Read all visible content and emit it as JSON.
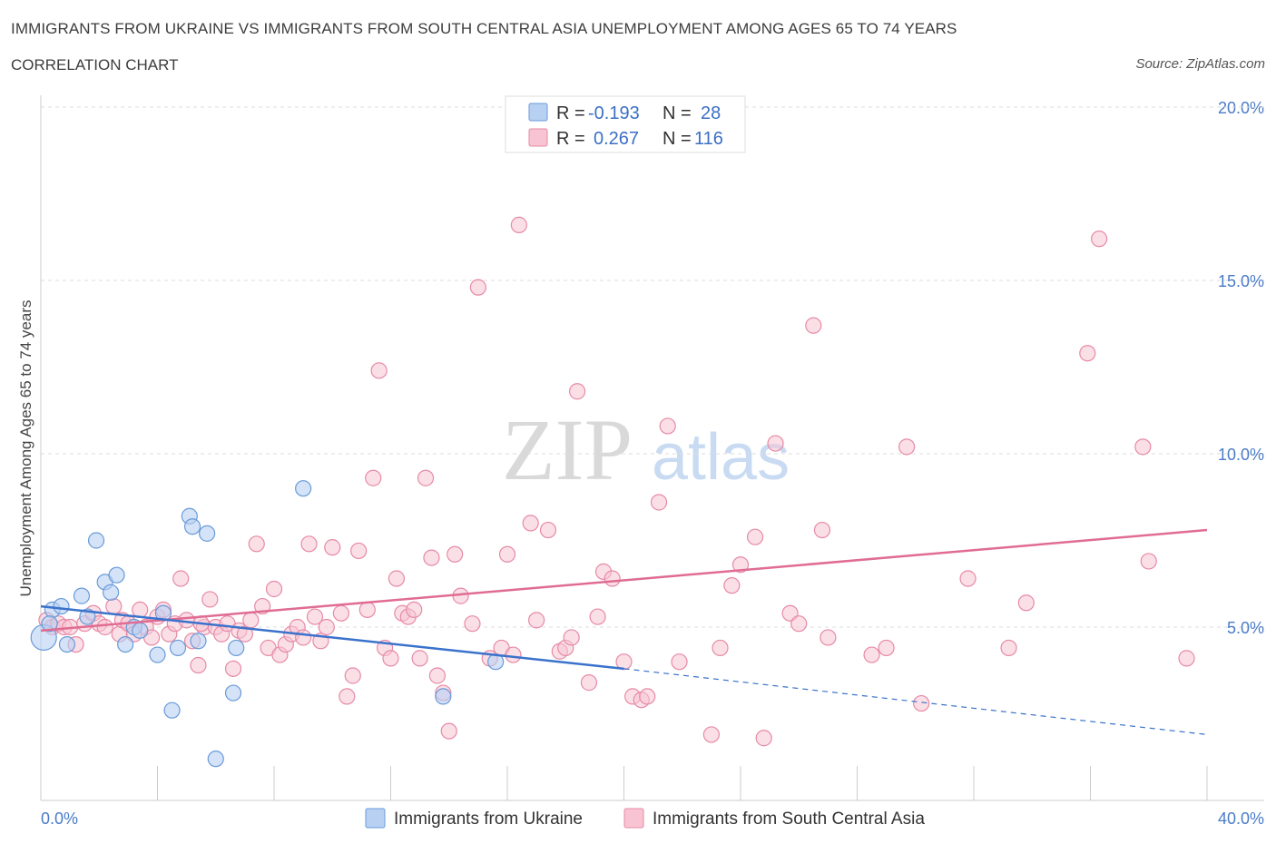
{
  "header": {
    "title": "IMMIGRANTS FROM UKRAINE VS IMMIGRANTS FROM SOUTH CENTRAL ASIA UNEMPLOYMENT AMONG AGES 65 TO 74 YEARS",
    "subtitle": "CORRELATION CHART",
    "source": "Source: ZipAtlas.com"
  },
  "watermark": {
    "zip": "ZIP",
    "atlas": "atlas"
  },
  "colors": {
    "ukraine_fill": "#b8d1f3",
    "ukraine_stroke": "#6a9ad8",
    "ukraine_line": "#3a72cc",
    "sca_fill": "#f8c4d3",
    "sca_stroke": "#e68aa6",
    "sca_line": "#e06c93",
    "grid": "#dddddd",
    "tick_label": "#4a7bc8"
  },
  "legend": {
    "row1": {
      "r_label": "R =",
      "r_value": "-0.193",
      "n_label": "N =",
      "n_value": "28"
    },
    "row2": {
      "r_label": "R =",
      "r_value": "0.267",
      "n_label": "N =",
      "n_value": "116"
    }
  },
  "chart_data": {
    "type": "scatter",
    "title": "IMMIGRANTS FROM UKRAINE VS IMMIGRANTS FROM SOUTH CENTRAL ASIA UNEMPLOYMENT AMONG AGES 65 TO 74 YEARS",
    "xlabel": "",
    "ylabel": "Unemployment Among Ages 65 to 74 years",
    "xlim": [
      0,
      40
    ],
    "ylim": [
      0,
      20
    ],
    "x_tick_labels": [
      "0.0%",
      "40.0%"
    ],
    "y_ticks": [
      5,
      10,
      15,
      20
    ],
    "y_tick_labels": [
      "5.0%",
      "10.0%",
      "15.0%",
      "20.0%"
    ],
    "grid": true,
    "legend_position": "top-center",
    "series": [
      {
        "name": "Immigrants from Ukraine",
        "R": -0.193,
        "N": 28,
        "trend": {
          "x0": 0,
          "y0": 5.6,
          "x1": 20,
          "y1": 3.8,
          "dashed_to_x": 40,
          "dashed_to_y": 1.9
        },
        "points": [
          [
            0.1,
            4.7
          ],
          [
            0.4,
            5.5
          ],
          [
            0.7,
            5.6
          ],
          [
            0.9,
            4.5
          ],
          [
            1.4,
            5.9
          ],
          [
            1.6,
            5.3
          ],
          [
            1.9,
            7.5
          ],
          [
            2.2,
            6.3
          ],
          [
            2.4,
            6.0
          ],
          [
            2.6,
            6.5
          ],
          [
            2.9,
            4.5
          ],
          [
            3.2,
            5.0
          ],
          [
            3.4,
            4.9
          ],
          [
            4.0,
            4.2
          ],
          [
            4.2,
            5.4
          ],
          [
            4.5,
            2.6
          ],
          [
            4.7,
            4.4
          ],
          [
            5.1,
            8.2
          ],
          [
            5.2,
            7.9
          ],
          [
            5.4,
            4.6
          ],
          [
            5.7,
            7.7
          ],
          [
            6.0,
            1.2
          ],
          [
            6.6,
            3.1
          ],
          [
            6.7,
            4.4
          ],
          [
            9.0,
            9.0
          ],
          [
            13.8,
            3.0
          ],
          [
            15.6,
            4.0
          ],
          [
            0.3,
            5.1
          ]
        ]
      },
      {
        "name": "Immigrants from South Central Asia",
        "R": 0.267,
        "N": 116,
        "trend": {
          "x0": 0,
          "y0": 4.9,
          "x1": 40,
          "y1": 7.8
        },
        "points": [
          [
            0.2,
            5.2
          ],
          [
            0.4,
            5.0
          ],
          [
            0.6,
            5.1
          ],
          [
            0.8,
            5.0
          ],
          [
            1.0,
            5.0
          ],
          [
            1.2,
            4.5
          ],
          [
            1.5,
            5.1
          ],
          [
            1.8,
            5.4
          ],
          [
            2.0,
            5.1
          ],
          [
            2.2,
            5.0
          ],
          [
            2.5,
            5.6
          ],
          [
            2.7,
            4.8
          ],
          [
            2.8,
            5.2
          ],
          [
            3.0,
            5.1
          ],
          [
            3.2,
            4.8
          ],
          [
            3.4,
            5.5
          ],
          [
            3.6,
            5.0
          ],
          [
            3.8,
            4.7
          ],
          [
            4.0,
            5.3
          ],
          [
            4.2,
            5.5
          ],
          [
            4.4,
            4.8
          ],
          [
            4.6,
            5.1
          ],
          [
            4.8,
            6.4
          ],
          [
            5.0,
            5.2
          ],
          [
            5.2,
            4.6
          ],
          [
            5.4,
            3.9
          ],
          [
            5.6,
            5.0
          ],
          [
            5.8,
            5.8
          ],
          [
            6.0,
            5.0
          ],
          [
            6.2,
            4.8
          ],
          [
            6.4,
            5.1
          ],
          [
            6.6,
            3.8
          ],
          [
            6.8,
            4.9
          ],
          [
            7.0,
            4.8
          ],
          [
            7.2,
            5.2
          ],
          [
            7.4,
            7.4
          ],
          [
            7.6,
            5.6
          ],
          [
            7.8,
            4.4
          ],
          [
            8.0,
            6.1
          ],
          [
            8.2,
            4.2
          ],
          [
            8.4,
            4.5
          ],
          [
            8.6,
            4.8
          ],
          [
            8.8,
            5.0
          ],
          [
            9.0,
            4.7
          ],
          [
            9.2,
            7.4
          ],
          [
            9.4,
            5.3
          ],
          [
            9.6,
            4.6
          ],
          [
            9.8,
            5.0
          ],
          [
            10.0,
            7.3
          ],
          [
            10.3,
            5.4
          ],
          [
            10.5,
            3.0
          ],
          [
            10.7,
            3.6
          ],
          [
            10.9,
            7.2
          ],
          [
            11.2,
            5.5
          ],
          [
            11.4,
            9.3
          ],
          [
            11.6,
            12.4
          ],
          [
            11.8,
            4.4
          ],
          [
            12.0,
            4.1
          ],
          [
            12.2,
            6.4
          ],
          [
            12.4,
            5.4
          ],
          [
            12.6,
            5.3
          ],
          [
            12.8,
            5.5
          ],
          [
            13.0,
            4.1
          ],
          [
            13.2,
            9.3
          ],
          [
            13.4,
            7.0
          ],
          [
            13.6,
            3.6
          ],
          [
            13.8,
            3.1
          ],
          [
            14.0,
            2.0
          ],
          [
            14.2,
            7.1
          ],
          [
            14.4,
            5.9
          ],
          [
            14.8,
            5.1
          ],
          [
            15.0,
            14.8
          ],
          [
            15.4,
            4.1
          ],
          [
            15.8,
            4.4
          ],
          [
            16.0,
            7.1
          ],
          [
            16.2,
            4.2
          ],
          [
            16.4,
            16.6
          ],
          [
            16.8,
            8.0
          ],
          [
            17.0,
            5.2
          ],
          [
            17.4,
            7.8
          ],
          [
            17.8,
            4.3
          ],
          [
            18.0,
            4.4
          ],
          [
            18.2,
            4.7
          ],
          [
            18.4,
            11.8
          ],
          [
            18.8,
            3.4
          ],
          [
            19.1,
            5.3
          ],
          [
            19.3,
            6.6
          ],
          [
            19.6,
            6.4
          ],
          [
            20.0,
            4.0
          ],
          [
            20.3,
            3.0
          ],
          [
            20.6,
            2.9
          ],
          [
            20.8,
            3.0
          ],
          [
            21.2,
            8.6
          ],
          [
            21.5,
            10.8
          ],
          [
            21.9,
            4.0
          ],
          [
            23.0,
            1.9
          ],
          [
            23.3,
            4.4
          ],
          [
            23.7,
            6.2
          ],
          [
            24.0,
            6.8
          ],
          [
            24.5,
            7.6
          ],
          [
            24.8,
            1.8
          ],
          [
            25.2,
            10.3
          ],
          [
            25.7,
            5.4
          ],
          [
            26.0,
            5.1
          ],
          [
            26.5,
            13.7
          ],
          [
            26.8,
            7.8
          ],
          [
            27.0,
            4.7
          ],
          [
            28.5,
            4.2
          ],
          [
            29.0,
            4.4
          ],
          [
            29.7,
            10.2
          ],
          [
            30.2,
            2.8
          ],
          [
            31.8,
            6.4
          ],
          [
            33.2,
            4.4
          ],
          [
            33.8,
            5.7
          ],
          [
            35.9,
            12.9
          ],
          [
            36.3,
            16.2
          ],
          [
            37.8,
            10.2
          ],
          [
            38.0,
            6.9
          ],
          [
            39.3,
            4.1
          ],
          [
            5.5,
            5.1
          ]
        ]
      }
    ]
  },
  "bottom_legend": {
    "ukraine": "Immigrants from Ukraine",
    "sca": "Immigrants from South Central Asia"
  }
}
